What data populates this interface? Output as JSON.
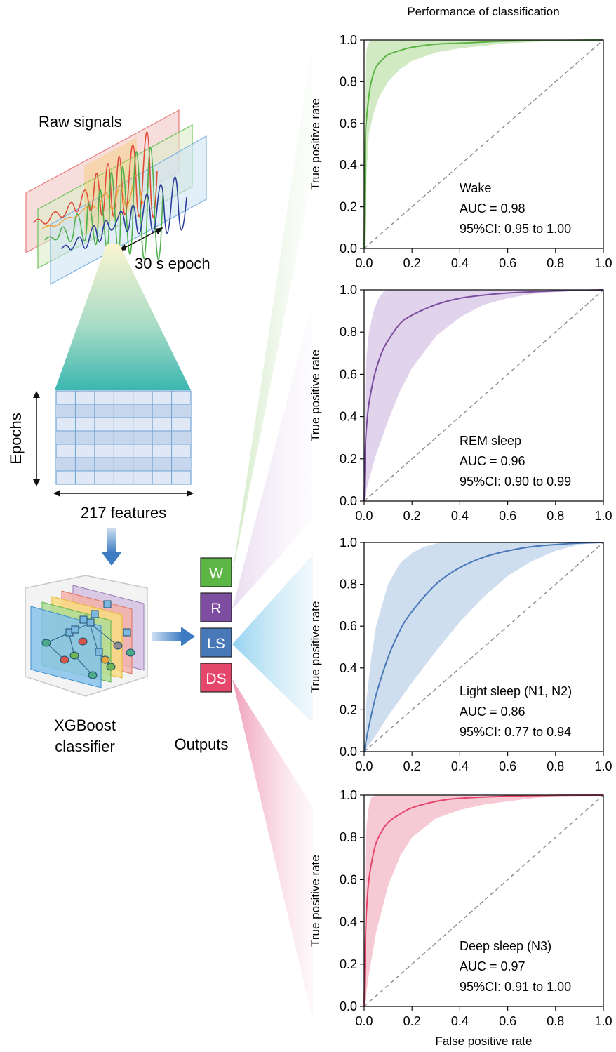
{
  "figure": {
    "title": "Performance of classification",
    "raw_signals_label": "Raw signals",
    "epoch_label": "30 s epoch",
    "epochs_axis_label": "Epochs",
    "features_label": "217 features",
    "classifier_label_line1": "XGBoost",
    "classifier_label_line2": "classifier",
    "outputs_label": "Outputs",
    "outputs": [
      {
        "label": "W",
        "color": "#5cb545"
      },
      {
        "label": "R",
        "color": "#7d4da0"
      },
      {
        "label": "LS",
        "color": "#4878b8"
      },
      {
        "label": "DS",
        "color": "#e5476c"
      }
    ]
  },
  "chart_data": [
    {
      "type": "line",
      "xlabel": "",
      "ylabel": "True positive rate",
      "xlim": [
        0,
        1
      ],
      "ylim": [
        0,
        1
      ],
      "x_ticks": [
        "0.0",
        "0.2",
        "0.4",
        "0.6",
        "0.8",
        "1.0"
      ],
      "y_ticks": [
        "0.0",
        "0.2",
        "0.4",
        "0.6",
        "0.8",
        "1.0"
      ],
      "color": "#5cb545",
      "fill_color": "#c9e6b8",
      "annotation": [
        "Wake",
        "AUC = 0.98",
        "95%CI: 0.95 to 1.00"
      ],
      "series": [
        {
          "values_x": [
            0.0,
            0.005,
            0.01,
            0.02,
            0.03,
            0.05,
            0.08,
            0.1,
            0.15,
            0.2,
            0.3,
            0.4,
            0.5,
            0.6,
            0.8,
            1.0
          ],
          "values_y": [
            0.0,
            0.5,
            0.62,
            0.73,
            0.8,
            0.87,
            0.91,
            0.93,
            0.95,
            0.965,
            0.98,
            0.985,
            0.99,
            0.995,
            0.998,
            1.0
          ]
        },
        {
          "values_x": [
            0.0,
            0.003,
            0.008,
            0.015,
            0.03,
            0.05,
            1.0
          ],
          "values_y": [
            0.0,
            0.75,
            0.93,
            0.98,
            1.0,
            1.0,
            1.0
          ]
        },
        {
          "values_x": [
            0.0,
            0.005,
            0.01,
            0.02,
            0.04,
            0.06,
            0.1,
            0.15,
            0.2,
            0.3,
            0.4,
            0.6,
            0.8,
            1.0
          ],
          "values_y": [
            0.0,
            0.1,
            0.35,
            0.55,
            0.65,
            0.72,
            0.8,
            0.86,
            0.9,
            0.94,
            0.96,
            0.985,
            0.995,
            1.0
          ]
        }
      ],
      "ci_line_names": [
        "mean",
        "upper",
        "lower"
      ]
    },
    {
      "type": "line",
      "xlabel": "",
      "ylabel": "True positive rate",
      "xlim": [
        0,
        1
      ],
      "ylim": [
        0,
        1
      ],
      "x_ticks": [
        "0.0",
        "0.2",
        "0.4",
        "0.6",
        "0.8",
        "1.0"
      ],
      "y_ticks": [
        "0.0",
        "0.2",
        "0.4",
        "0.6",
        "0.8",
        "1.0"
      ],
      "color": "#7d4da0",
      "fill_color": "#dacbe8",
      "annotation": [
        "REM sleep",
        "AUC = 0.96",
        "95%CI: 0.90 to 0.99"
      ],
      "series": [
        {
          "values_x": [
            0.0,
            0.005,
            0.01,
            0.02,
            0.04,
            0.06,
            0.08,
            0.1,
            0.15,
            0.2,
            0.3,
            0.4,
            0.5,
            0.6,
            0.8,
            1.0
          ],
          "values_y": [
            0.0,
            0.25,
            0.35,
            0.46,
            0.58,
            0.66,
            0.72,
            0.76,
            0.84,
            0.88,
            0.93,
            0.96,
            0.975,
            0.985,
            0.995,
            1.0
          ]
        },
        {
          "values_x": [
            0.0,
            0.005,
            0.01,
            0.02,
            0.04,
            0.06,
            0.08,
            0.1,
            1.0
          ],
          "values_y": [
            0.0,
            0.55,
            0.68,
            0.8,
            0.9,
            0.96,
            0.99,
            1.0,
            1.0
          ]
        },
        {
          "values_x": [
            0.0,
            0.01,
            0.02,
            0.05,
            0.1,
            0.15,
            0.2,
            0.3,
            0.4,
            0.5,
            0.6,
            0.7,
            0.8,
            0.9,
            1.0
          ],
          "values_y": [
            0.0,
            0.05,
            0.1,
            0.22,
            0.38,
            0.52,
            0.63,
            0.78,
            0.87,
            0.93,
            0.96,
            0.98,
            0.99,
            0.995,
            1.0
          ]
        }
      ],
      "ci_line_names": [
        "mean",
        "upper",
        "lower"
      ]
    },
    {
      "type": "line",
      "xlabel": "",
      "ylabel": "True positive rate",
      "xlim": [
        0,
        1
      ],
      "ylim": [
        0,
        1
      ],
      "x_ticks": [
        "0.0",
        "0.2",
        "0.4",
        "0.6",
        "0.8",
        "1.0"
      ],
      "y_ticks": [
        "0.0",
        "0.2",
        "0.4",
        "0.6",
        "0.8",
        "1.0"
      ],
      "color": "#4878b8",
      "fill_color": "#c7d8ec",
      "annotation": [
        "Light sleep (N1, N2)",
        "AUC = 0.86",
        "95%CI: 0.77 to 0.94"
      ],
      "series": [
        {
          "values_x": [
            0.0,
            0.02,
            0.05,
            0.1,
            0.15,
            0.2,
            0.3,
            0.4,
            0.5,
            0.6,
            0.7,
            0.8,
            0.9,
            1.0
          ],
          "values_y": [
            0.0,
            0.12,
            0.27,
            0.45,
            0.58,
            0.67,
            0.8,
            0.88,
            0.93,
            0.96,
            0.98,
            0.99,
            0.997,
            1.0
          ]
        },
        {
          "values_x": [
            0.0,
            0.01,
            0.03,
            0.05,
            0.1,
            0.15,
            0.2,
            0.25,
            0.3,
            0.35,
            0.4,
            1.0
          ],
          "values_y": [
            0.0,
            0.25,
            0.45,
            0.6,
            0.8,
            0.9,
            0.95,
            0.98,
            0.995,
            1.0,
            1.0,
            1.0
          ]
        },
        {
          "values_x": [
            0.0,
            0.05,
            0.1,
            0.2,
            0.3,
            0.4,
            0.5,
            0.6,
            0.7,
            0.8,
            0.9,
            1.0
          ],
          "values_y": [
            0.0,
            0.08,
            0.17,
            0.33,
            0.48,
            0.62,
            0.74,
            0.84,
            0.91,
            0.96,
            0.99,
            1.0
          ]
        }
      ],
      "ci_line_names": [
        "mean",
        "upper",
        "lower"
      ]
    },
    {
      "type": "line",
      "xlabel": "False positive rate",
      "ylabel": "True positive rate",
      "xlim": [
        0,
        1
      ],
      "ylim": [
        0,
        1
      ],
      "x_ticks": [
        "0.0",
        "0.2",
        "0.4",
        "0.6",
        "0.8",
        "1.0"
      ],
      "y_ticks": [
        "0.0",
        "0.2",
        "0.4",
        "0.6",
        "0.8",
        "1.0"
      ],
      "color": "#e5476c",
      "fill_color": "#f4c1cd",
      "annotation": [
        "Deep sleep (N3)",
        "AUC = 0.97",
        "95%CI: 0.91 to 1.00"
      ],
      "series": [
        {
          "values_x": [
            0.0,
            0.005,
            0.01,
            0.02,
            0.04,
            0.06,
            0.1,
            0.15,
            0.2,
            0.3,
            0.4,
            0.6,
            0.8,
            1.0
          ],
          "values_y": [
            0.0,
            0.3,
            0.45,
            0.6,
            0.73,
            0.8,
            0.87,
            0.91,
            0.94,
            0.97,
            0.985,
            0.995,
            0.999,
            1.0
          ]
        },
        {
          "values_x": [
            0.0,
            0.005,
            0.01,
            0.02,
            0.03,
            0.05,
            1.0
          ],
          "values_y": [
            0.0,
            0.7,
            0.85,
            0.95,
            0.99,
            1.0,
            1.0
          ]
        },
        {
          "values_x": [
            0.0,
            0.01,
            0.02,
            0.05,
            0.1,
            0.15,
            0.2,
            0.3,
            0.4,
            0.5,
            0.6,
            0.7,
            0.8,
            1.0
          ],
          "values_y": [
            0.0,
            0.07,
            0.15,
            0.35,
            0.57,
            0.71,
            0.8,
            0.89,
            0.93,
            0.955,
            0.97,
            0.985,
            0.995,
            1.0
          ]
        }
      ],
      "ci_line_names": [
        "mean",
        "upper",
        "lower"
      ]
    }
  ]
}
